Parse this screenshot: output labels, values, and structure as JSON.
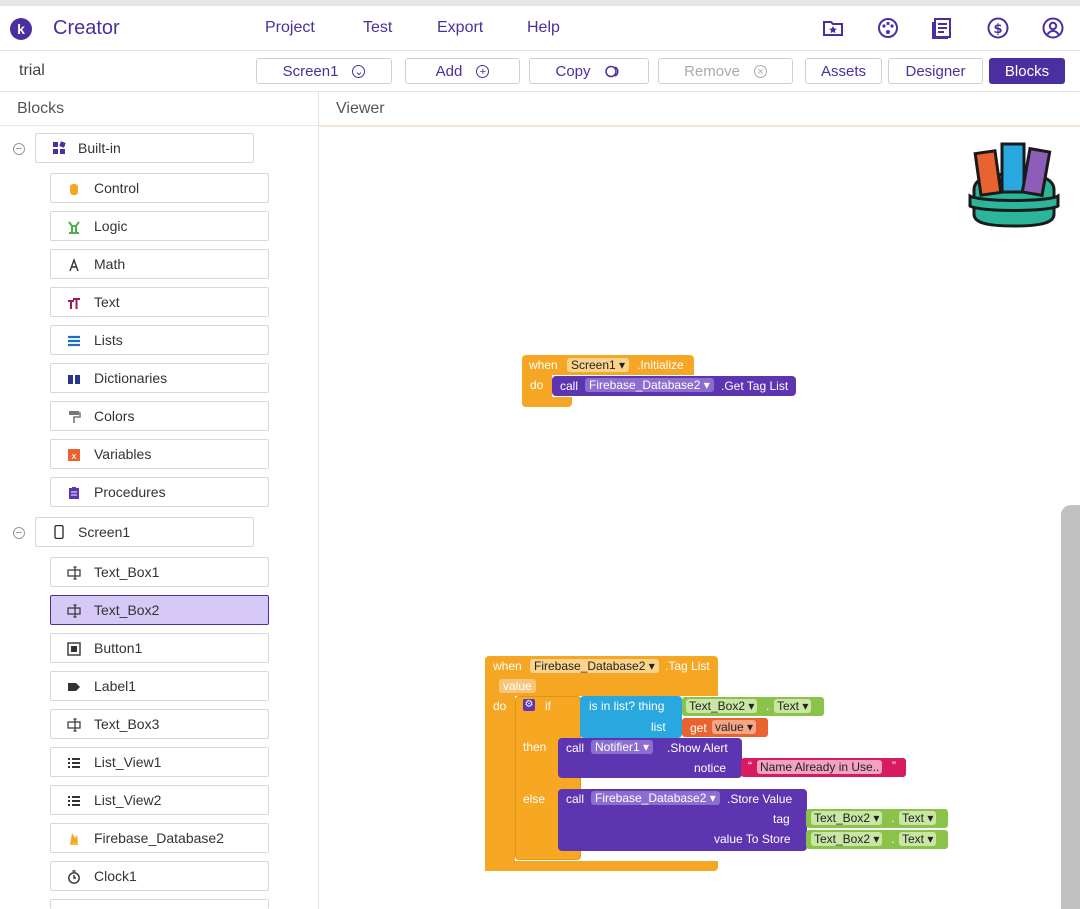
{
  "app": {
    "logo_letter": "k",
    "name": "Creator"
  },
  "menu": [
    "Project",
    "Test",
    "Export",
    "Help"
  ],
  "top_icons": [
    "star-folder-icon",
    "palette-icon",
    "news-icon",
    "dollar-icon",
    "account-icon"
  ],
  "toolbar": {
    "project_name": "trial",
    "screen_select": "Screen1",
    "add": "Add",
    "copy": "Copy",
    "remove": "Remove",
    "assets": "Assets",
    "designer": "Designer",
    "blocks": "Blocks"
  },
  "panels": {
    "blocks": "Blocks",
    "viewer": "Viewer"
  },
  "builtin": {
    "label": "Built-in",
    "items": [
      "Control",
      "Logic",
      "Math",
      "Text",
      "Lists",
      "Dictionaries",
      "Colors",
      "Variables",
      "Procedures"
    ]
  },
  "screen": {
    "label": "Screen1",
    "items": [
      "Text_Box1",
      "Text_Box2",
      "Button1",
      "Label1",
      "Text_Box3",
      "List_View1",
      "List_View2",
      "Firebase_Database2",
      "Clock1"
    ],
    "selected": "Text_Box2"
  },
  "block1": {
    "when": "when",
    "component": "Screen1",
    "event": ".Initialize",
    "do": "do",
    "call": "call",
    "target": "Firebase_Database2",
    "method": ".Get Tag List"
  },
  "block2": {
    "when": "when",
    "component": "Firebase_Database2",
    "event": ".Tag List",
    "param": "value",
    "do": "do",
    "if": "if",
    "is_in_list": "is in list? thing",
    "list": "list",
    "textbox": "Text_Box2",
    "text_prop": "Text",
    "get": "get",
    "get_var": "value",
    "then": "then",
    "call": "call",
    "notifier": "Notifier1",
    "show_alert": ".Show Alert",
    "notice": "notice",
    "quote_open": "“",
    "quote_close": "”",
    "message": "Name Already in Use..",
    "else": "else",
    "db": "Firebase_Database2",
    "store_value": ".Store Value",
    "tag": "tag",
    "value_to_store": "value To Store",
    "dot": "."
  },
  "colors": {
    "brand": "#4b2fa0",
    "event": "#f5a623",
    "call": "#5e35b1",
    "logic": "#29a8e0",
    "textbox": "#8bc34a",
    "get": "#e8632f",
    "string": "#d81b60"
  }
}
